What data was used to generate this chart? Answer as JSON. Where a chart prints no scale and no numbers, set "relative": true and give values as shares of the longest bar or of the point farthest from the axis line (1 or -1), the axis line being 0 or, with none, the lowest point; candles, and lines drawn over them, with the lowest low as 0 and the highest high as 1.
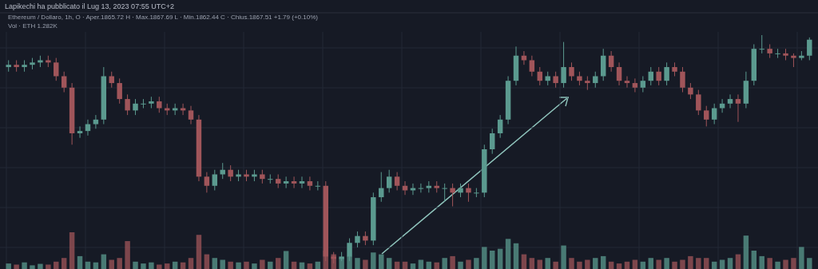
{
  "chart_data": [
    {
      "type": "candlestick",
      "title": "Lapikechi ha pubblicato il Lug 13, 2023 07:55 UTC+2",
      "subtitle": "Ethereum / Dollaro, 1h,  O · Aper.1865.72  H · Max.1867.69  L · Min.1862.44  C · Chius.1867.51  +1.79 (+0.10%)",
      "relative": true,
      "grid": true,
      "categories": [
        null,
        null,
        null,
        null,
        null,
        null,
        null,
        null,
        null,
        null,
        null,
        null,
        null,
        null,
        null,
        null,
        null,
        null,
        null,
        null,
        null,
        null,
        null,
        null,
        null,
        null,
        null,
        null,
        null,
        null,
        null,
        null,
        null,
        null,
        null,
        null,
        null,
        null,
        null,
        null,
        null,
        null,
        null,
        null,
        null,
        null,
        null,
        null,
        null,
        null,
        null,
        null,
        null,
        null,
        null,
        null,
        null,
        null,
        null,
        null,
        null,
        null,
        null,
        null,
        null,
        null,
        null,
        null,
        null,
        null,
        null,
        null,
        null,
        null,
        null,
        null,
        null,
        null,
        null,
        null,
        null,
        null,
        null,
        null,
        null,
        null,
        null,
        null,
        null,
        null,
        null,
        null,
        null,
        null,
        null,
        null,
        null,
        null,
        null,
        null,
        null,
        null
      ],
      "ohlc": [
        [
          0.86,
          0.89,
          0.84,
          0.87
        ],
        [
          0.87,
          0.89,
          0.84,
          0.86
        ],
        [
          0.86,
          0.89,
          0.84,
          0.87
        ],
        [
          0.87,
          0.9,
          0.85,
          0.88
        ],
        [
          0.88,
          0.91,
          0.86,
          0.89
        ],
        [
          0.89,
          0.91,
          0.86,
          0.88
        ],
        [
          0.88,
          0.9,
          0.8,
          0.82
        ],
        [
          0.82,
          0.84,
          0.75,
          0.77
        ],
        [
          0.77,
          0.79,
          0.52,
          0.57
        ],
        [
          0.57,
          0.6,
          0.55,
          0.58
        ],
        [
          0.58,
          0.63,
          0.56,
          0.61
        ],
        [
          0.61,
          0.65,
          0.59,
          0.63
        ],
        [
          0.63,
          0.86,
          0.61,
          0.82
        ],
        [
          0.82,
          0.84,
          0.77,
          0.79
        ],
        [
          0.79,
          0.81,
          0.7,
          0.72
        ],
        [
          0.72,
          0.74,
          0.65,
          0.67
        ],
        [
          0.67,
          0.72,
          0.65,
          0.7
        ],
        [
          0.7,
          0.72,
          0.68,
          0.7
        ],
        [
          0.7,
          0.73,
          0.68,
          0.71
        ],
        [
          0.71,
          0.73,
          0.66,
          0.68
        ],
        [
          0.68,
          0.7,
          0.65,
          0.67
        ],
        [
          0.67,
          0.7,
          0.65,
          0.68
        ],
        [
          0.68,
          0.7,
          0.65,
          0.67
        ],
        [
          0.67,
          0.69,
          0.61,
          0.63
        ],
        [
          0.63,
          0.65,
          0.36,
          0.38
        ],
        [
          0.38,
          0.4,
          0.31,
          0.34
        ],
        [
          0.34,
          0.41,
          0.32,
          0.39
        ],
        [
          0.39,
          0.44,
          0.37,
          0.41
        ],
        [
          0.41,
          0.43,
          0.36,
          0.38
        ],
        [
          0.38,
          0.41,
          0.36,
          0.39
        ],
        [
          0.39,
          0.41,
          0.36,
          0.38
        ],
        [
          0.38,
          0.41,
          0.36,
          0.39
        ],
        [
          0.39,
          0.41,
          0.35,
          0.37
        ],
        [
          0.37,
          0.39,
          0.35,
          0.37
        ],
        [
          0.37,
          0.39,
          0.33,
          0.35
        ],
        [
          0.35,
          0.38,
          0.33,
          0.36
        ],
        [
          0.36,
          0.38,
          0.33,
          0.35
        ],
        [
          0.35,
          0.38,
          0.33,
          0.36
        ],
        [
          0.36,
          0.38,
          0.32,
          0.34
        ],
        [
          0.34,
          0.36,
          0.32,
          0.34
        ],
        [
          0.34,
          0.36,
          0.01,
          0.03
        ],
        [
          0.03,
          0.05,
          0.0,
          0.02
        ],
        [
          0.02,
          0.05,
          0.01,
          0.03
        ],
        [
          0.03,
          0.11,
          0.01,
          0.09
        ],
        [
          0.09,
          0.14,
          0.07,
          0.12
        ],
        [
          0.12,
          0.14,
          0.08,
          0.1
        ],
        [
          0.1,
          0.31,
          0.08,
          0.29
        ],
        [
          0.29,
          0.4,
          0.27,
          0.33
        ],
        [
          0.33,
          0.41,
          0.31,
          0.38
        ],
        [
          0.38,
          0.4,
          0.32,
          0.34
        ],
        [
          0.34,
          0.36,
          0.3,
          0.32
        ],
        [
          0.32,
          0.35,
          0.3,
          0.33
        ],
        [
          0.33,
          0.35,
          0.31,
          0.33
        ],
        [
          0.33,
          0.36,
          0.31,
          0.34
        ],
        [
          0.34,
          0.36,
          0.31,
          0.33
        ],
        [
          0.33,
          0.35,
          0.27,
          0.33
        ],
        [
          0.33,
          0.35,
          0.25,
          0.31
        ],
        [
          0.31,
          0.35,
          0.29,
          0.33
        ],
        [
          0.33,
          0.35,
          0.27,
          0.31
        ],
        [
          0.31,
          0.33,
          0.29,
          0.31
        ],
        [
          0.31,
          0.52,
          0.29,
          0.5
        ],
        [
          0.5,
          0.59,
          0.48,
          0.57
        ],
        [
          0.57,
          0.65,
          0.55,
          0.63
        ],
        [
          0.63,
          0.82,
          0.61,
          0.8
        ],
        [
          0.8,
          0.95,
          0.78,
          0.91
        ],
        [
          0.91,
          0.93,
          0.87,
          0.89
        ],
        [
          0.89,
          0.91,
          0.82,
          0.84
        ],
        [
          0.84,
          0.86,
          0.78,
          0.8
        ],
        [
          0.8,
          0.84,
          0.78,
          0.82
        ],
        [
          0.82,
          0.84,
          0.77,
          0.79
        ],
        [
          0.79,
          0.97,
          0.77,
          0.86
        ],
        [
          0.86,
          0.88,
          0.8,
          0.82
        ],
        [
          0.82,
          0.84,
          0.78,
          0.8
        ],
        [
          0.8,
          0.82,
          0.76,
          0.79
        ],
        [
          0.79,
          0.84,
          0.77,
          0.82
        ],
        [
          0.82,
          0.94,
          0.8,
          0.91
        ],
        [
          0.91,
          0.93,
          0.84,
          0.86
        ],
        [
          0.86,
          0.88,
          0.78,
          0.8
        ],
        [
          0.8,
          0.82,
          0.77,
          0.79
        ],
        [
          0.79,
          0.81,
          0.75,
          0.77
        ],
        [
          0.77,
          0.82,
          0.75,
          0.8
        ],
        [
          0.8,
          0.86,
          0.78,
          0.84
        ],
        [
          0.84,
          0.86,
          0.78,
          0.8
        ],
        [
          0.8,
          0.88,
          0.78,
          0.86
        ],
        [
          0.86,
          0.88,
          0.82,
          0.84
        ],
        [
          0.84,
          0.86,
          0.75,
          0.77
        ],
        [
          0.77,
          0.79,
          0.72,
          0.74
        ],
        [
          0.74,
          0.76,
          0.65,
          0.67
        ],
        [
          0.67,
          0.69,
          0.6,
          0.63
        ],
        [
          0.63,
          0.7,
          0.61,
          0.68
        ],
        [
          0.68,
          0.72,
          0.66,
          0.7
        ],
        [
          0.7,
          0.74,
          0.68,
          0.72
        ],
        [
          0.72,
          0.74,
          0.62,
          0.7
        ],
        [
          0.7,
          0.84,
          0.68,
          0.8
        ],
        [
          0.8,
          0.96,
          0.78,
          0.94
        ],
        [
          0.94,
          1.0,
          0.92,
          0.94
        ],
        [
          0.94,
          0.96,
          0.9,
          0.92
        ],
        [
          0.92,
          0.94,
          0.9,
          0.92
        ],
        [
          0.92,
          0.94,
          0.89,
          0.91
        ],
        [
          0.91,
          0.92,
          0.86,
          0.9
        ],
        [
          0.9,
          0.93,
          0.89,
          0.91
        ],
        [
          0.91,
          0.99,
          0.89,
          0.98
        ]
      ],
      "colors": [
        "#5b9a8f",
        "#a0555a",
        "#5b9a8f",
        "#5b9a8f",
        "#5b9a8f",
        "#a0555a",
        "#a0555a",
        "#a0555a",
        "#a0555a",
        "#5b9a8f",
        "#5b9a8f",
        "#5b9a8f",
        "#5b9a8f",
        "#a0555a",
        "#a0555a",
        "#a0555a",
        "#5b9a8f",
        "#5b9a8f",
        "#5b9a8f",
        "#a0555a",
        "#a0555a",
        "#5b9a8f",
        "#a0555a",
        "#a0555a",
        "#a0555a",
        "#a0555a",
        "#5b9a8f",
        "#5b9a8f",
        "#a0555a",
        "#5b9a8f",
        "#a0555a",
        "#5b9a8f",
        "#a0555a",
        "#5b9a8f",
        "#a0555a",
        "#5b9a8f",
        "#a0555a",
        "#5b9a8f",
        "#a0555a",
        "#5b9a8f",
        "#a0555a",
        "#a0555a",
        "#5b9a8f",
        "#5b9a8f",
        "#5b9a8f",
        "#a0555a",
        "#5b9a8f",
        "#5b9a8f",
        "#5b9a8f",
        "#a0555a",
        "#a0555a",
        "#5b9a8f",
        "#5b9a8f",
        "#5b9a8f",
        "#a0555a",
        "#5b9a8f",
        "#a0555a",
        "#5b9a8f",
        "#a0555a",
        "#5b9a8f",
        "#5b9a8f",
        "#5b9a8f",
        "#5b9a8f",
        "#5b9a8f",
        "#5b9a8f",
        "#a0555a",
        "#a0555a",
        "#a0555a",
        "#5b9a8f",
        "#a0555a",
        "#5b9a8f",
        "#a0555a",
        "#a0555a",
        "#a0555a",
        "#5b9a8f",
        "#5b9a8f",
        "#a0555a",
        "#a0555a",
        "#a0555a",
        "#a0555a",
        "#5b9a8f",
        "#5b9a8f",
        "#a0555a",
        "#5b9a8f",
        "#a0555a",
        "#a0555a",
        "#a0555a",
        "#a0555a",
        "#a0555a",
        "#5b9a8f",
        "#5b9a8f",
        "#5b9a8f",
        "#a0555a",
        "#5b9a8f",
        "#5b9a8f",
        "#5b9a8f",
        "#a0555a",
        "#5b9a8f",
        "#a0555a",
        "#a0555a",
        "#5b9a8f",
        "#5b9a8f"
      ]
    },
    {
      "type": "bar",
      "title": "Vol · ETH  1.282K",
      "relative": true,
      "categories": [
        null,
        null,
        null,
        null,
        null,
        null,
        null,
        null,
        null,
        null,
        null,
        null,
        null,
        null,
        null,
        null,
        null,
        null,
        null,
        null,
        null,
        null,
        null,
        null,
        null,
        null,
        null,
        null,
        null,
        null,
        null,
        null,
        null,
        null,
        null,
        null,
        null,
        null,
        null,
        null,
        null,
        null,
        null,
        null,
        null,
        null,
        null,
        null,
        null,
        null,
        null,
        null,
        null,
        null,
        null,
        null,
        null,
        null,
        null,
        null,
        null,
        null,
        null,
        null,
        null,
        null,
        null,
        null,
        null,
        null,
        null,
        null,
        null,
        null,
        null,
        null,
        null,
        null,
        null,
        null,
        null,
        null,
        null,
        null,
        null,
        null,
        null,
        null,
        null,
        null,
        null,
        null,
        null,
        null,
        null,
        null,
        null,
        null,
        null,
        null,
        null,
        null
      ],
      "values": [
        0.15,
        0.12,
        0.18,
        0.1,
        0.14,
        0.12,
        0.2,
        0.3,
        1.0,
        0.35,
        0.2,
        0.18,
        0.4,
        0.25,
        0.3,
        0.76,
        0.2,
        0.15,
        0.18,
        0.12,
        0.15,
        0.2,
        0.18,
        0.3,
        0.93,
        0.4,
        0.3,
        0.25,
        0.2,
        0.18,
        0.2,
        0.15,
        0.25,
        0.2,
        0.3,
        0.49,
        0.2,
        0.18,
        0.15,
        0.2,
        0.5,
        0.4,
        0.3,
        0.35,
        0.3,
        0.25,
        0.45,
        0.4,
        0.3,
        0.2,
        0.2,
        0.15,
        0.25,
        0.2,
        0.18,
        0.3,
        0.35,
        0.2,
        0.25,
        0.3,
        0.6,
        0.5,
        0.55,
        0.82,
        0.7,
        0.4,
        0.3,
        0.25,
        0.3,
        0.2,
        0.64,
        0.3,
        0.2,
        0.25,
        0.3,
        0.35,
        0.2,
        0.15,
        0.2,
        0.25,
        0.2,
        0.3,
        0.25,
        0.3,
        0.2,
        0.25,
        0.35,
        0.3,
        0.3,
        0.2,
        0.25,
        0.3,
        0.4,
        0.91,
        0.5,
        0.35,
        0.3,
        0.2,
        0.25,
        0.3,
        0.6,
        0.3
      ],
      "colors": [
        "#5b9a8f",
        "#a0555a",
        "#5b9a8f",
        "#5b9a8f",
        "#5b9a8f",
        "#a0555a",
        "#a0555a",
        "#a0555a",
        "#a0555a",
        "#5b9a8f",
        "#5b9a8f",
        "#5b9a8f",
        "#5b9a8f",
        "#a0555a",
        "#a0555a",
        "#a0555a",
        "#5b9a8f",
        "#5b9a8f",
        "#5b9a8f",
        "#a0555a",
        "#a0555a",
        "#5b9a8f",
        "#a0555a",
        "#a0555a",
        "#a0555a",
        "#a0555a",
        "#5b9a8f",
        "#5b9a8f",
        "#a0555a",
        "#5b9a8f",
        "#a0555a",
        "#5b9a8f",
        "#a0555a",
        "#5b9a8f",
        "#a0555a",
        "#5b9a8f",
        "#a0555a",
        "#5b9a8f",
        "#a0555a",
        "#5b9a8f",
        "#a0555a",
        "#a0555a",
        "#5b9a8f",
        "#5b9a8f",
        "#5b9a8f",
        "#a0555a",
        "#5b9a8f",
        "#5b9a8f",
        "#5b9a8f",
        "#a0555a",
        "#a0555a",
        "#5b9a8f",
        "#5b9a8f",
        "#5b9a8f",
        "#a0555a",
        "#5b9a8f",
        "#a0555a",
        "#5b9a8f",
        "#a0555a",
        "#5b9a8f",
        "#5b9a8f",
        "#5b9a8f",
        "#5b9a8f",
        "#5b9a8f",
        "#5b9a8f",
        "#a0555a",
        "#a0555a",
        "#a0555a",
        "#5b9a8f",
        "#a0555a",
        "#5b9a8f",
        "#a0555a",
        "#a0555a",
        "#a0555a",
        "#5b9a8f",
        "#5b9a8f",
        "#a0555a",
        "#a0555a",
        "#a0555a",
        "#a0555a",
        "#5b9a8f",
        "#5b9a8f",
        "#a0555a",
        "#5b9a8f",
        "#a0555a",
        "#a0555a",
        "#a0555a",
        "#a0555a",
        "#a0555a",
        "#5b9a8f",
        "#5b9a8f",
        "#5b9a8f",
        "#a0555a",
        "#5b9a8f",
        "#5b9a8f",
        "#5b9a8f",
        "#a0555a",
        "#5b9a8f",
        "#a0555a",
        "#a0555a",
        "#5b9a8f",
        "#5b9a8f"
      ]
    }
  ]
}
